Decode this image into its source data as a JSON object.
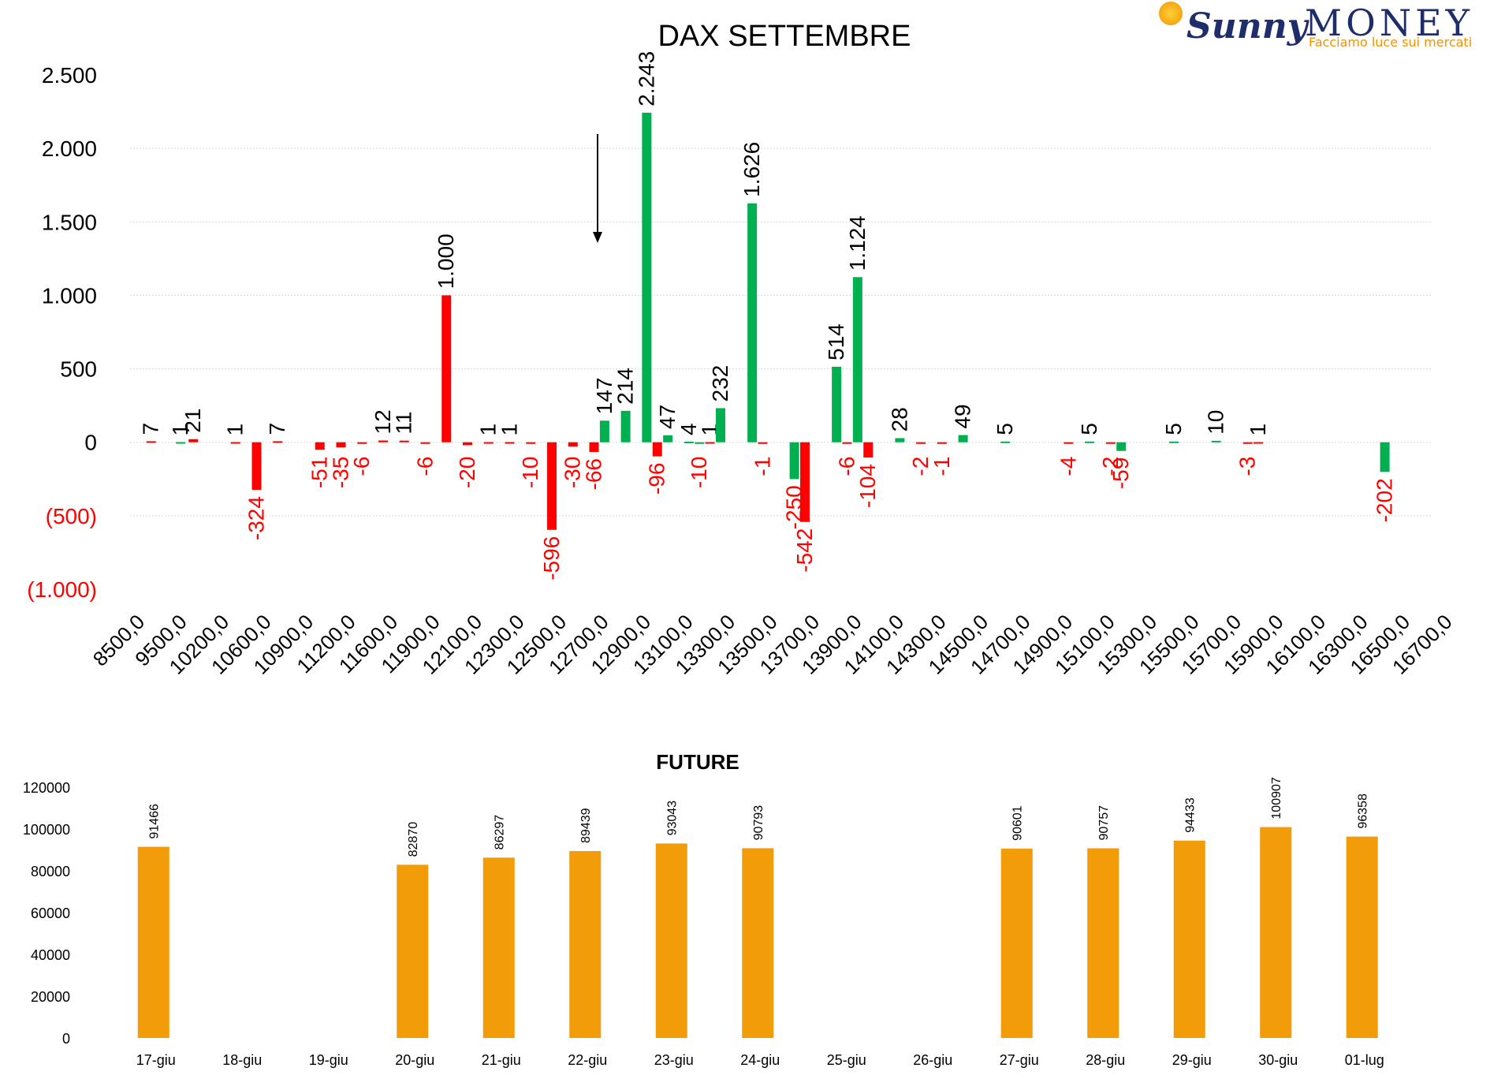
{
  "logo": {
    "brand_script": "Sunny",
    "brand_main": "MONEY",
    "tagline": "Facciamo luce sui mercati"
  },
  "colors": {
    "positive": "#00b050",
    "negative": "#ff0000",
    "future": "#f39c0a",
    "grid": "#d9d9d9",
    "text": "#000000"
  },
  "chart_data": [
    {
      "type": "bar",
      "title": "DAX SETTEMBRE",
      "ylim": [
        -1000,
        2500
      ],
      "yticks": [
        {
          "value": 2500,
          "label": "2.500",
          "negative": false
        },
        {
          "value": 2000,
          "label": "2.000",
          "negative": false
        },
        {
          "value": 1500,
          "label": "1.500",
          "negative": false
        },
        {
          "value": 1000,
          "label": "1.000",
          "negative": false
        },
        {
          "value": 500,
          "label": "500",
          "negative": false
        },
        {
          "value": 0,
          "label": "0",
          "negative": false
        },
        {
          "value": -500,
          "label": "(500)",
          "negative": true
        },
        {
          "value": -1000,
          "label": "(1.000)",
          "negative": true
        }
      ],
      "grid": true,
      "categories": [
        "8500,0",
        "9500,0",
        "10200,0",
        "10600,0",
        "10900,0",
        "11200,0",
        "11600,0",
        "11900,0",
        "12100,0",
        "12300,0",
        "12500,0",
        "12700,0",
        "12900,0",
        "13100,0",
        "13300,0",
        "13500,0",
        "13700,0",
        "13900,0",
        "14100,0",
        "14300,0",
        "14500,0",
        "14700,0",
        "14900,0",
        "15100,0",
        "15300,0",
        "15500,0",
        "15700,0",
        "15900,0",
        "16100,0",
        "16300,0",
        "16500,0",
        "16700,0"
      ],
      "bars": [
        {
          "slot": 0.5,
          "value": 7,
          "label": "7",
          "color": "negative"
        },
        {
          "slot": 1.2,
          "value": 1,
          "label": "1",
          "color": "positive"
        },
        {
          "slot": 1.5,
          "value": 21,
          "label": "21",
          "color": "negative"
        },
        {
          "slot": 2.5,
          "value": 1,
          "label": "1",
          "color": "negative"
        },
        {
          "slot": 3.0,
          "value": -324,
          "label": "-324",
          "color": "negative"
        },
        {
          "slot": 3.5,
          "value": 7,
          "label": "7",
          "color": "negative"
        },
        {
          "slot": 4.5,
          "value": -51,
          "label": "-51",
          "color": "negative"
        },
        {
          "slot": 5.0,
          "value": -35,
          "label": "-35",
          "color": "negative"
        },
        {
          "slot": 5.5,
          "value": -6,
          "label": "-6",
          "color": "negative"
        },
        {
          "slot": 6.0,
          "value": 12,
          "label": "12",
          "color": "negative"
        },
        {
          "slot": 6.5,
          "value": 11,
          "label": "11",
          "color": "negative"
        },
        {
          "slot": 7.0,
          "value": -6,
          "label": "-6",
          "color": "negative"
        },
        {
          "slot": 7.5,
          "value": 1000,
          "label": "1.000",
          "color": "negative"
        },
        {
          "slot": 8.0,
          "value": -20,
          "label": "-20",
          "color": "negative"
        },
        {
          "slot": 8.5,
          "value": 1,
          "label": "1",
          "color": "negative"
        },
        {
          "slot": 9.0,
          "value": 1,
          "label": "1",
          "color": "negative"
        },
        {
          "slot": 9.5,
          "value": -10,
          "label": "-10",
          "color": "negative"
        },
        {
          "slot": 10.0,
          "value": -596,
          "label": "-596",
          "color": "negative"
        },
        {
          "slot": 10.5,
          "value": -30,
          "label": "-30",
          "color": "negative"
        },
        {
          "slot": 11.0,
          "value": -66,
          "label": "-66",
          "color": "negative"
        },
        {
          "slot": 11.25,
          "value": 147,
          "label": "147",
          "color": "positive"
        },
        {
          "slot": 11.75,
          "value": 214,
          "label": "214",
          "color": "positive"
        },
        {
          "slot": 12.25,
          "value": 2243,
          "label": "2.243",
          "color": "positive"
        },
        {
          "slot": 12.5,
          "value": -96,
          "label": "-96",
          "color": "negative"
        },
        {
          "slot": 12.75,
          "value": 47,
          "label": "47",
          "color": "positive"
        },
        {
          "slot": 13.25,
          "value": 4,
          "label": "4",
          "color": "positive"
        },
        {
          "slot": 13.5,
          "value": -10,
          "label": "-10",
          "color": "positive"
        },
        {
          "slot": 13.75,
          "value": 1,
          "label": "1",
          "color": "negative"
        },
        {
          "slot": 14.0,
          "value": 232,
          "label": "232",
          "color": "positive"
        },
        {
          "slot": 14.75,
          "value": 1626,
          "label": "1.626",
          "color": "positive"
        },
        {
          "slot": 15.0,
          "value": -1,
          "label": "-1",
          "color": "negative"
        },
        {
          "slot": 15.75,
          "value": -250,
          "label": "-250",
          "color": "positive"
        },
        {
          "slot": 16.0,
          "value": -542,
          "label": "-542",
          "color": "negative"
        },
        {
          "slot": 16.75,
          "value": 514,
          "label": "514",
          "color": "positive"
        },
        {
          "slot": 17.0,
          "value": -6,
          "label": "-6",
          "color": "negative"
        },
        {
          "slot": 17.25,
          "value": 1124,
          "label": "1.124",
          "color": "positive"
        },
        {
          "slot": 17.5,
          "value": -104,
          "label": "-104",
          "color": "negative"
        },
        {
          "slot": 18.25,
          "value": 28,
          "label": "28",
          "color": "positive"
        },
        {
          "slot": 18.75,
          "value": -2,
          "label": "-2",
          "color": "negative"
        },
        {
          "slot": 19.25,
          "value": -1,
          "label": "-1",
          "color": "negative"
        },
        {
          "slot": 19.75,
          "value": 49,
          "label": "49",
          "color": "positive"
        },
        {
          "slot": 20.75,
          "value": 5,
          "label": "5",
          "color": "positive"
        },
        {
          "slot": 22.25,
          "value": -4,
          "label": "-4",
          "color": "negative"
        },
        {
          "slot": 22.75,
          "value": 5,
          "label": "5",
          "color": "positive"
        },
        {
          "slot": 23.25,
          "value": -2,
          "label": "-2",
          "color": "negative"
        },
        {
          "slot": 23.5,
          "value": -59,
          "label": "-59",
          "color": "positive"
        },
        {
          "slot": 24.75,
          "value": 5,
          "label": "5",
          "color": "positive"
        },
        {
          "slot": 25.75,
          "value": 10,
          "label": "10",
          "color": "positive"
        },
        {
          "slot": 26.5,
          "value": -3,
          "label": "-3",
          "color": "negative"
        },
        {
          "slot": 26.75,
          "value": 1,
          "label": "1",
          "color": "negative"
        },
        {
          "slot": 29.75,
          "value": -202,
          "label": "-202",
          "color": "positive"
        }
      ]
    },
    {
      "type": "bar",
      "title": "FUTURE",
      "ylim": [
        0,
        120000
      ],
      "yticks": [
        "0",
        "20000",
        "40000",
        "60000",
        "80000",
        "100000",
        "120000"
      ],
      "categories": [
        "17-giu",
        "18-giu",
        "19-giu",
        "20-giu",
        "21-giu",
        "22-giu",
        "23-giu",
        "24-giu",
        "25-giu",
        "26-giu",
        "27-giu",
        "28-giu",
        "29-giu",
        "30-giu",
        "01-lug"
      ],
      "values": [
        91466,
        null,
        null,
        82870,
        86297,
        89439,
        93043,
        90793,
        null,
        null,
        90601,
        90757,
        94433,
        100907,
        96358
      ],
      "labels": [
        "91466",
        "",
        "",
        "82870",
        "86297",
        "89439",
        "93043",
        "90793",
        "",
        "",
        "90601",
        "90757",
        "94433",
        "100907",
        "96358"
      ]
    }
  ]
}
